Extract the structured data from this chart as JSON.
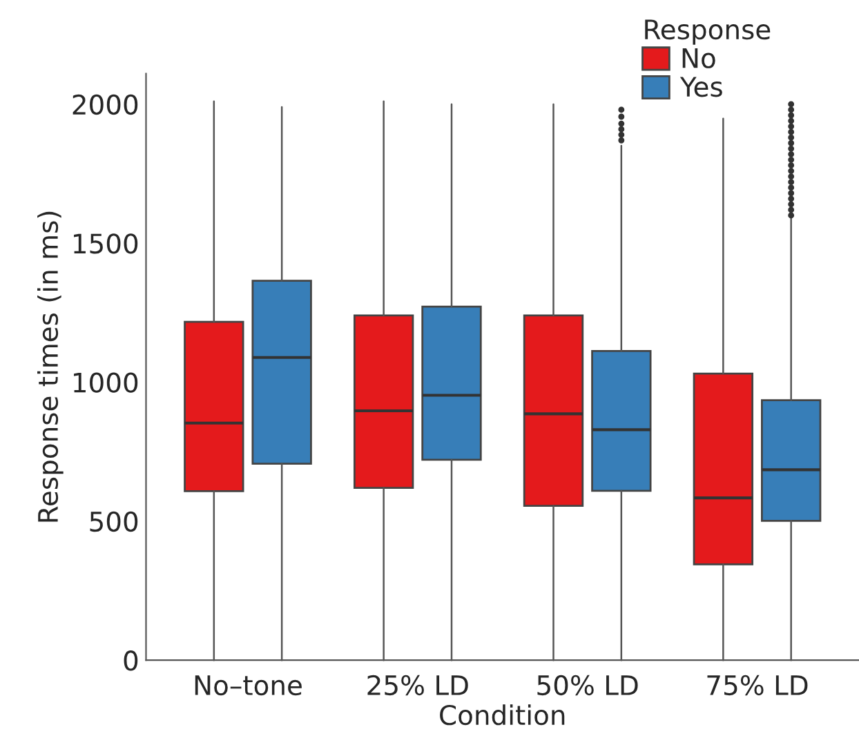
{
  "chart_data": {
    "type": "box",
    "xlabel": "Condition",
    "ylabel": "Response times (in ms)",
    "legend_title": "Response",
    "categories": [
      "No–tone",
      "25% LD",
      "50% LD",
      "75% LD"
    ],
    "ylim": [
      0,
      2110
    ],
    "yticks": [
      0,
      500,
      1000,
      1500,
      2000
    ],
    "grid": false,
    "legend": "top right",
    "series": [
      {
        "name": "No",
        "color": "#e41a1c",
        "boxes": [
          {
            "low": 0,
            "q1": 608,
            "median": 853,
            "q3": 1217,
            "high": 2010
          },
          {
            "low": 0,
            "q1": 620,
            "median": 897,
            "q3": 1240,
            "high": 2010
          },
          {
            "low": 0,
            "q1": 555,
            "median": 886,
            "q3": 1240,
            "high": 2000
          },
          {
            "low": 0,
            "q1": 345,
            "median": 584,
            "q3": 1031,
            "high": 1948
          }
        ]
      },
      {
        "name": "Yes",
        "color": "#377eb8",
        "boxes": [
          {
            "low": 0,
            "q1": 707,
            "median": 1089,
            "q3": 1365,
            "high": 1990
          },
          {
            "low": 0,
            "q1": 721,
            "median": 953,
            "q3": 1272,
            "high": 2000
          },
          {
            "low": 0,
            "q1": 609,
            "median": 829,
            "q3": 1112,
            "high": 1851,
            "outliers": [
              1870,
              1890,
              1910,
              1930,
              1955,
              1980
            ]
          },
          {
            "low": 0,
            "q1": 501,
            "median": 685,
            "q3": 935,
            "high": 1589,
            "outliers": [
              1600,
              1620,
              1640,
              1660,
              1680,
              1700,
              1720,
              1740,
              1760,
              1780,
              1800,
              1820,
              1840,
              1860,
              1880,
              1900,
              1920,
              1940,
              1960,
              1980,
              2000
            ]
          }
        ]
      }
    ]
  }
}
